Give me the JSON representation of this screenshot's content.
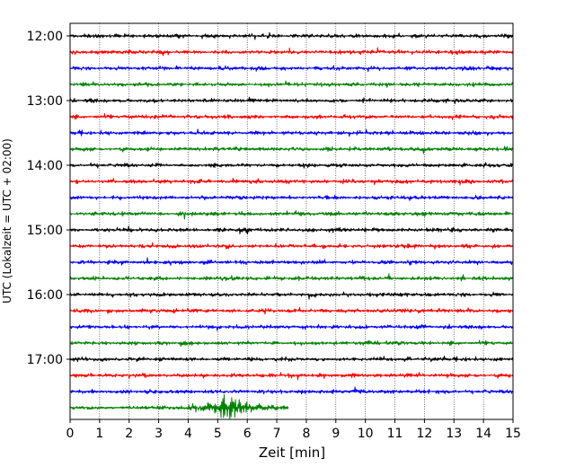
{
  "chart_data": {
    "type": "line",
    "title": "",
    "xlabel": "Zeit  [min]",
    "ylabel": "UTC (Lokalzeit = UTC + 02:00)",
    "xlim": [
      0,
      15
    ],
    "x_ticks": [
      0,
      1,
      2,
      3,
      4,
      5,
      6,
      7,
      8,
      9,
      10,
      11,
      12,
      13,
      14,
      15
    ],
    "y_ticks": [
      "12:00",
      "13:00",
      "14:00",
      "15:00",
      "16:00",
      "17:00"
    ],
    "grid": "vertical dotted lines at each minute",
    "colors": [
      "#000000",
      "#ff0000",
      "#0000ff",
      "#008000"
    ],
    "traces": [
      {
        "start": "12:00",
        "color": "#000000"
      },
      {
        "start": "12:15",
        "color": "#ff0000"
      },
      {
        "start": "12:30",
        "color": "#0000ff"
      },
      {
        "start": "12:45",
        "color": "#008000"
      },
      {
        "start": "13:00",
        "color": "#000000"
      },
      {
        "start": "13:15",
        "color": "#ff0000"
      },
      {
        "start": "13:30",
        "color": "#0000ff"
      },
      {
        "start": "13:45",
        "color": "#008000"
      },
      {
        "start": "14:00",
        "color": "#000000"
      },
      {
        "start": "14:15",
        "color": "#ff0000"
      },
      {
        "start": "14:30",
        "color": "#0000ff"
      },
      {
        "start": "14:45",
        "color": "#008000"
      },
      {
        "start": "15:00",
        "color": "#000000"
      },
      {
        "start": "15:15",
        "color": "#ff0000"
      },
      {
        "start": "15:30",
        "color": "#0000ff"
      },
      {
        "start": "15:45",
        "color": "#008000"
      },
      {
        "start": "16:00",
        "color": "#000000"
      },
      {
        "start": "16:15",
        "color": "#ff0000"
      },
      {
        "start": "16:30",
        "color": "#0000ff"
      },
      {
        "start": "16:45",
        "color": "#008000"
      },
      {
        "start": "17:00",
        "color": "#000000"
      },
      {
        "start": "17:15",
        "color": "#ff0000"
      },
      {
        "start": "17:30",
        "color": "#0000ff"
      },
      {
        "start": "17:45",
        "color": "#008000",
        "end_min": 7.4,
        "event": {
          "center_min": 5.3,
          "span_min": [
            3.3,
            7.4
          ]
        }
      }
    ]
  }
}
